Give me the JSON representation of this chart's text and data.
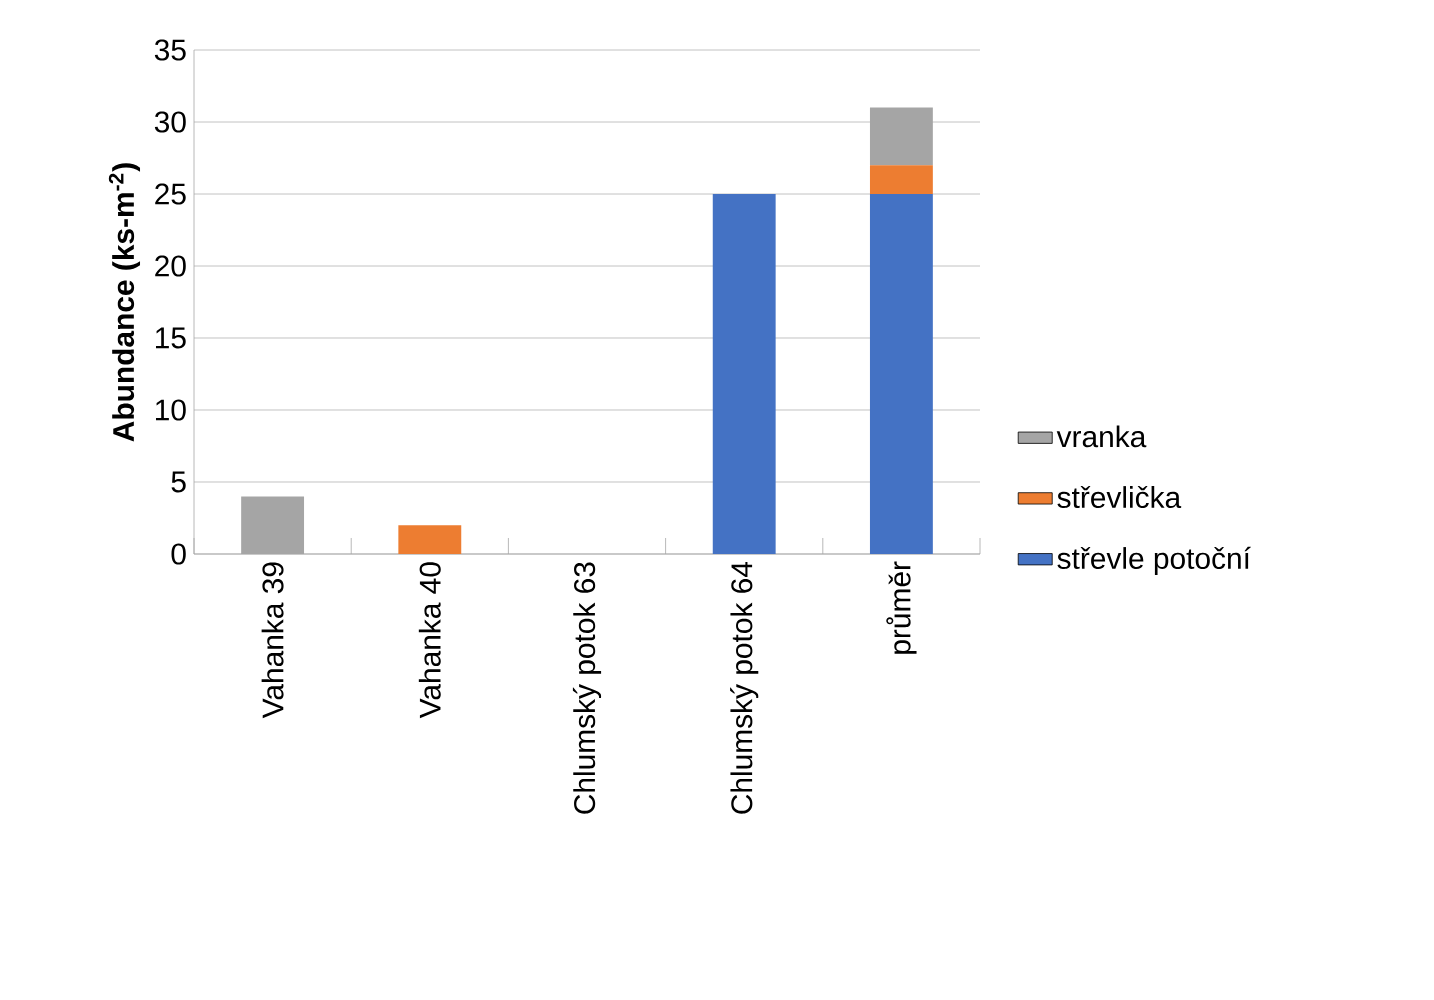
{
  "chart_data": {
    "type": "bar",
    "stacked": true,
    "ylabel": "Abundance (ks-m$^{-2}$)",
    "categories": [
      "Vahanka 39",
      "Vahanka 40",
      "Chlumský potok 63",
      "Chlumský potok 64",
      "průměr"
    ],
    "series": [
      {
        "name": "střevle potoční",
        "color": "#4472c4",
        "values": [
          0,
          0,
          0,
          25,
          25
        ]
      },
      {
        "name": "střevlička",
        "color": "#ed7d31",
        "values": [
          0,
          2,
          0,
          0,
          2
        ]
      },
      {
        "name": "vranka",
        "color": "#a5a5a5",
        "values": [
          4,
          0,
          0,
          0,
          4
        ]
      }
    ],
    "ylim": [
      0,
      35
    ],
    "yticks": [
      0,
      5,
      10,
      15,
      20,
      25,
      30,
      35
    ],
    "grid": "y",
    "legend": "right"
  }
}
